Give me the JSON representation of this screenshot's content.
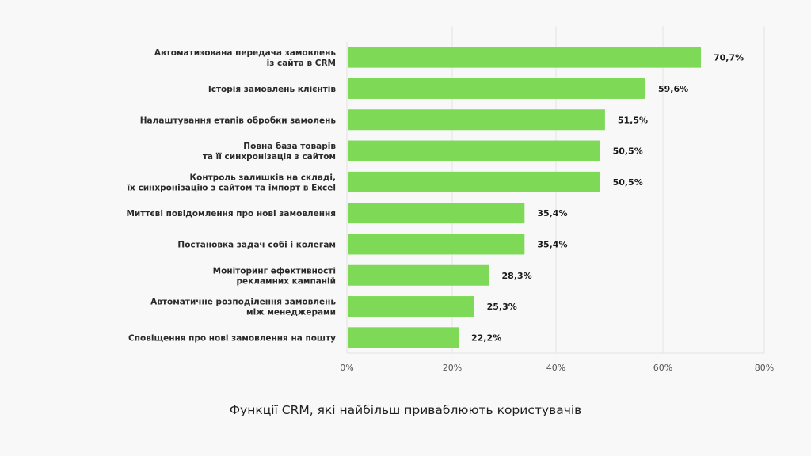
{
  "chart_data": {
    "type": "bar",
    "orientation": "horizontal",
    "title": "Функції CRM, які найбільш приваблюють користувачів",
    "xlabel": "",
    "ylabel": "",
    "xlim": [
      0,
      80
    ],
    "grid": true,
    "bar_color": "#7ed957",
    "categories": [
      [
        "Автоматизована передача замовлень",
        "із сайта в  CRM"
      ],
      [
        "Історія замовлень клієнтів"
      ],
      [
        "Налаштування етапів обробки замолень"
      ],
      [
        "Повна база товарів",
        "та її синхронізація з сайтом"
      ],
      [
        "Контроль залишків на складі,",
        "їх синхронізацію з сайтом та імпорт в Excel"
      ],
      [
        "Миттєві повідомлення про нові замовлення"
      ],
      [
        "Постановка задач собі і колегам"
      ],
      [
        "Моніторинг ефективності",
        "рекламних кампаній"
      ],
      [
        "Автоматичне розподілення замовлень",
        "між менеджерами"
      ],
      [
        "Сповіщення про нові замовлення на пошту"
      ]
    ],
    "values": [
      70.7,
      59.6,
      51.5,
      50.5,
      50.5,
      35.4,
      35.4,
      28.3,
      25.3,
      22.2
    ],
    "value_labels": [
      "70,7%",
      "59,6%",
      "51,5%",
      "50,5%",
      "50,5%",
      "35,4%",
      "35,4%",
      "28,3%",
      "25,3%",
      "22,2%"
    ],
    "ticks": [
      0,
      20,
      40,
      60,
      80
    ],
    "tick_labels": [
      "0%",
      "20%",
      "40%",
      "60%",
      "80%"
    ]
  }
}
